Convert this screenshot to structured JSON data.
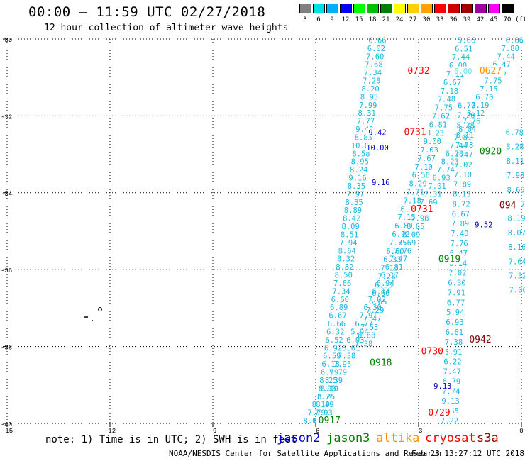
{
  "title": "00:00 – 11:59 UTC 02/27/2018",
  "subtitle": "12 hour collection of altimeter wave heights",
  "legend": {
    "unit": "(ft)",
    "bins": [
      {
        "label": "3",
        "color": "#808080"
      },
      {
        "label": "6",
        "color": "#00e0e0"
      },
      {
        "label": "9",
        "color": "#00b0ff"
      },
      {
        "label": "12",
        "color": "#0000ff"
      },
      {
        "label": "15",
        "color": "#00ff00"
      },
      {
        "label": "18",
        "color": "#00c000"
      },
      {
        "label": "21",
        "color": "#008000"
      },
      {
        "label": "24",
        "color": "#ffff00"
      },
      {
        "label": "27",
        "color": "#ffd000"
      },
      {
        "label": "30",
        "color": "#ffa000"
      },
      {
        "label": "33",
        "color": "#ff0000"
      },
      {
        "label": "36",
        "color": "#d00000"
      },
      {
        "label": "39",
        "color": "#a00000"
      },
      {
        "label": "42",
        "color": "#a000a0"
      },
      {
        "label": "45",
        "color": "#ff00ff"
      },
      {
        "label": "70",
        "color": "#000000"
      }
    ]
  },
  "axes": {
    "lat_ticks": [
      "-30",
      "-32",
      "-34",
      "-36",
      "-38",
      "-40"
    ],
    "lon_ticks": [
      "-15",
      "-12",
      "-9",
      "-6",
      "-3",
      "0"
    ]
  },
  "map_data": {
    "lon_range": [
      -15,
      0
    ],
    "lat_range": [
      -40,
      -30
    ],
    "colors": {
      "sky": "#1ab8e0",
      "blue": "#0000d0",
      "green": "#008000",
      "red": "#ff0000",
      "darkred": "#800000",
      "orange": "#ff8c00",
      "light": "#66ddee"
    },
    "tracks": [
      {
        "color": "sky",
        "start": [
          -4.2,
          -30.1
        ],
        "end": [
          -5.8,
          -40.0
        ],
        "values": [
          "6.66",
          "6.02",
          "7.60",
          "7.68",
          "7.34",
          "7.28",
          "8.20",
          "8.95",
          "7.99",
          "8.31",
          "7.77",
          "9.42",
          "8.83",
          "10.00",
          "8.58",
          "8.95",
          "8.24",
          "9.16",
          "8.35",
          "7.97",
          "8.35",
          "8.89",
          "8.42",
          "8.09",
          "8.51",
          "7.94",
          "8.64",
          "8.32",
          "8.82",
          "8.50",
          "7.66",
          "7.34",
          "6.60",
          "6.89",
          "6.67",
          "6.66",
          "6.32",
          "6.52",
          "6.92",
          "6.59",
          "6.18",
          "6.99",
          "8.25",
          "8.93",
          "8.25",
          "8.49",
          "7.93",
          "8.07"
        ]
      },
      {
        "color": "sky",
        "start": [
          -0.2,
          -30.1
        ],
        "end": [
          -6.1,
          -40.0
        ],
        "values": [
          "6.66",
          "7.80",
          "7.44",
          "6.47",
          "7.36",
          "7.75",
          "7.15",
          "6.70",
          "7.19",
          "8.12",
          "7.76",
          "8.04",
          "7.81",
          "7.44",
          "6.78",
          "8.23",
          "7.74",
          "6.93",
          "7.01",
          "7.31",
          "7.69",
          "6.67",
          "7.98",
          "8.65",
          "8.09",
          "7.69",
          "7.76",
          "7.47",
          "6.81",
          "6.17",
          "6.94",
          "6.14",
          "7.02",
          "6.30",
          "7.91",
          "6.77",
          "5.94",
          "6.93",
          "6.61",
          "7.38",
          "7.95",
          "7.79",
          "8.39",
          "8.19",
          "7.70",
          "8.19",
          "7.79",
          "8.02"
        ]
      },
      {
        "color": "sky",
        "start": [
          -1.6,
          -30.1
        ],
        "end": [
          -4.6,
          -38.0
        ],
        "values": [
          "5.66",
          "6.51",
          "7.44",
          "6.00",
          "7.11",
          "6.67",
          "7.18",
          "7.48",
          "7.75",
          "7.62",
          "6.81",
          "8.23",
          "9.00",
          "7.03",
          "7.67",
          "7.10",
          "6.56",
          "8.29",
          "7.71",
          "7.18",
          "6.66",
          "7.15",
          "6.89",
          "6.92",
          "7.35",
          "6.60",
          "6.33",
          "7.13",
          "7.28",
          "6.50",
          "6.66",
          "6.65",
          "7.29",
          "7.47",
          "7.53",
          "6.88",
          "7.38"
        ]
      },
      {
        "color": "sky",
        "start": [
          -1.6,
          -31.8
        ],
        "end": [
          -2.1,
          -40.0
        ],
        "values": [
          "6.79",
          "7.20",
          "8.28",
          "8.11",
          "7.78",
          "7.47",
          "7.02",
          "7.10",
          "7.89",
          "8.13",
          "8.72",
          "6.67",
          "7.89",
          "7.40",
          "7.76",
          "6.47",
          "8.14",
          "7.02",
          "6.30",
          "7.91",
          "6.77",
          "5.94",
          "6.93",
          "6.61",
          "7.38",
          "6.91",
          "6.22",
          "7.47",
          "6.79",
          "7.74",
          "9.13",
          "6.65",
          "7.22"
        ]
      },
      {
        "color": "sky",
        "start": [
          -0.2,
          -32.5
        ],
        "end": [
          -0.1,
          -36.6
        ],
        "values": [
          "6.78",
          "8.28",
          "8.11",
          "7.98",
          "8.65",
          "8.07",
          "8.19",
          "8.07",
          "8.16",
          "7.64",
          "7.32",
          "7.06"
        ]
      }
    ],
    "time_labels": [
      {
        "text": "0732",
        "color": "red",
        "pos": [
          -3.0,
          -30.9
        ]
      },
      {
        "text": "0731",
        "color": "red",
        "pos": [
          -3.1,
          -32.5
        ]
      },
      {
        "text": "0731",
        "color": "red",
        "pos": [
          -2.9,
          -34.5
        ]
      },
      {
        "text": "0730",
        "color": "red",
        "pos": [
          -2.6,
          -38.2
        ]
      },
      {
        "text": "0729",
        "color": "red",
        "pos": [
          -2.4,
          -39.8
        ]
      },
      {
        "text": "0919",
        "color": "green",
        "pos": [
          -2.1,
          -35.8
        ]
      },
      {
        "text": "0920",
        "color": "green",
        "pos": [
          -0.9,
          -33.0
        ]
      },
      {
        "text": "0918",
        "color": "green",
        "pos": [
          -4.1,
          -38.5
        ]
      },
      {
        "text": "0917",
        "color": "green",
        "pos": [
          -5.6,
          -40.0
        ]
      },
      {
        "text": "0942",
        "color": "darkred",
        "pos": [
          -1.2,
          -37.9
        ]
      },
      {
        "text": "094",
        "color": "darkred",
        "pos": [
          -0.4,
          -34.4
        ]
      },
      {
        "text": "0627",
        "color": "orange",
        "pos": [
          -0.9,
          -30.9
        ]
      }
    ],
    "highlight_values": [
      {
        "text": "9.42",
        "color": "blue",
        "pos": [
          -4.2,
          -32.5
        ]
      },
      {
        "text": "10.00",
        "color": "blue",
        "pos": [
          -4.2,
          -32.9
        ]
      },
      {
        "text": "9.16",
        "color": "blue",
        "pos": [
          -4.1,
          -33.8
        ]
      },
      {
        "text": "9.52",
        "color": "blue",
        "pos": [
          -1.1,
          -34.9
        ]
      },
      {
        "text": "9.13",
        "color": "blue",
        "pos": [
          -2.3,
          -39.1
        ]
      },
      {
        "text": "6.00",
        "color": "light",
        "pos": [
          -1.7,
          -30.9
        ]
      }
    ]
  },
  "footer": {
    "note": "note: 1) Time is in UTC; 2) SWH is in feet",
    "satellites": [
      {
        "name": "jason2",
        "color": "#0000d0"
      },
      {
        "name": "jason3",
        "color": "#008000"
      },
      {
        "name": "altika",
        "color": "#ff8c00"
      },
      {
        "name": "cryosat",
        "color": "#ff0000"
      },
      {
        "name": "s3a",
        "color": "#a00000"
      }
    ],
    "credit": "NOAA/NESDIS Center for Satellite Applications and Research",
    "timestamp": "Feb 28 13:27:12 UTC 2018"
  }
}
